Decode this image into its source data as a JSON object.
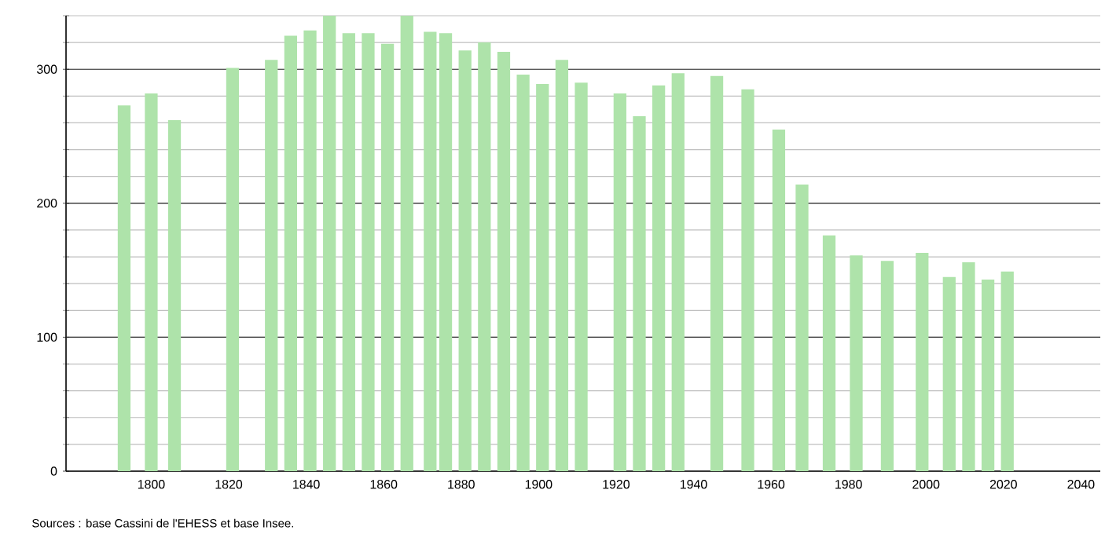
{
  "chart_data": {
    "type": "bar",
    "x": [
      1793,
      1800,
      1806,
      1821,
      1831,
      1836,
      1841,
      1846,
      1851,
      1856,
      1861,
      1866,
      1872,
      1876,
      1881,
      1886,
      1891,
      1896,
      1901,
      1906,
      1911,
      1921,
      1926,
      1931,
      1936,
      1946,
      1954,
      1962,
      1968,
      1975,
      1982,
      1990,
      1999,
      2006,
      2011,
      2016,
      2021
    ],
    "values": [
      273,
      282,
      262,
      301,
      307,
      325,
      329,
      340,
      327,
      327,
      319,
      340,
      328,
      327,
      314,
      320,
      313,
      296,
      289,
      307,
      290,
      282,
      265,
      288,
      297,
      295,
      285,
      255,
      214,
      176,
      161,
      157,
      163,
      145,
      156,
      143,
      149
    ],
    "color": "#aee3aa",
    "xlim": [
      1778,
      2045
    ],
    "xticks": [
      1800,
      1820,
      1840,
      1860,
      1880,
      1900,
      1920,
      1940,
      1960,
      1980,
      2000,
      2020,
      2040
    ],
    "ylim": [
      0,
      340
    ],
    "yticks": [
      0,
      {
        "value": 20,
        "label": null
      },
      {
        "value": 40,
        "label": null
      },
      {
        "value": 60,
        "label": null
      },
      {
        "value": 80,
        "label": null
      },
      100,
      {
        "value": 120,
        "label": null
      },
      {
        "value": 140,
        "label": null
      },
      {
        "value": 160,
        "label": null
      },
      {
        "value": 180,
        "label": null
      },
      200,
      {
        "value": 220,
        "label": null
      },
      {
        "value": 240,
        "label": null
      },
      {
        "value": 260,
        "label": null
      },
      {
        "value": 280,
        "label": null
      },
      300,
      {
        "value": 320,
        "label": null
      },
      {
        "value": 340,
        "label": null
      }
    ],
    "grid": "y",
    "annotations": [
      "Sources : base Cassini de l'EHESS et base Insee."
    ]
  }
}
